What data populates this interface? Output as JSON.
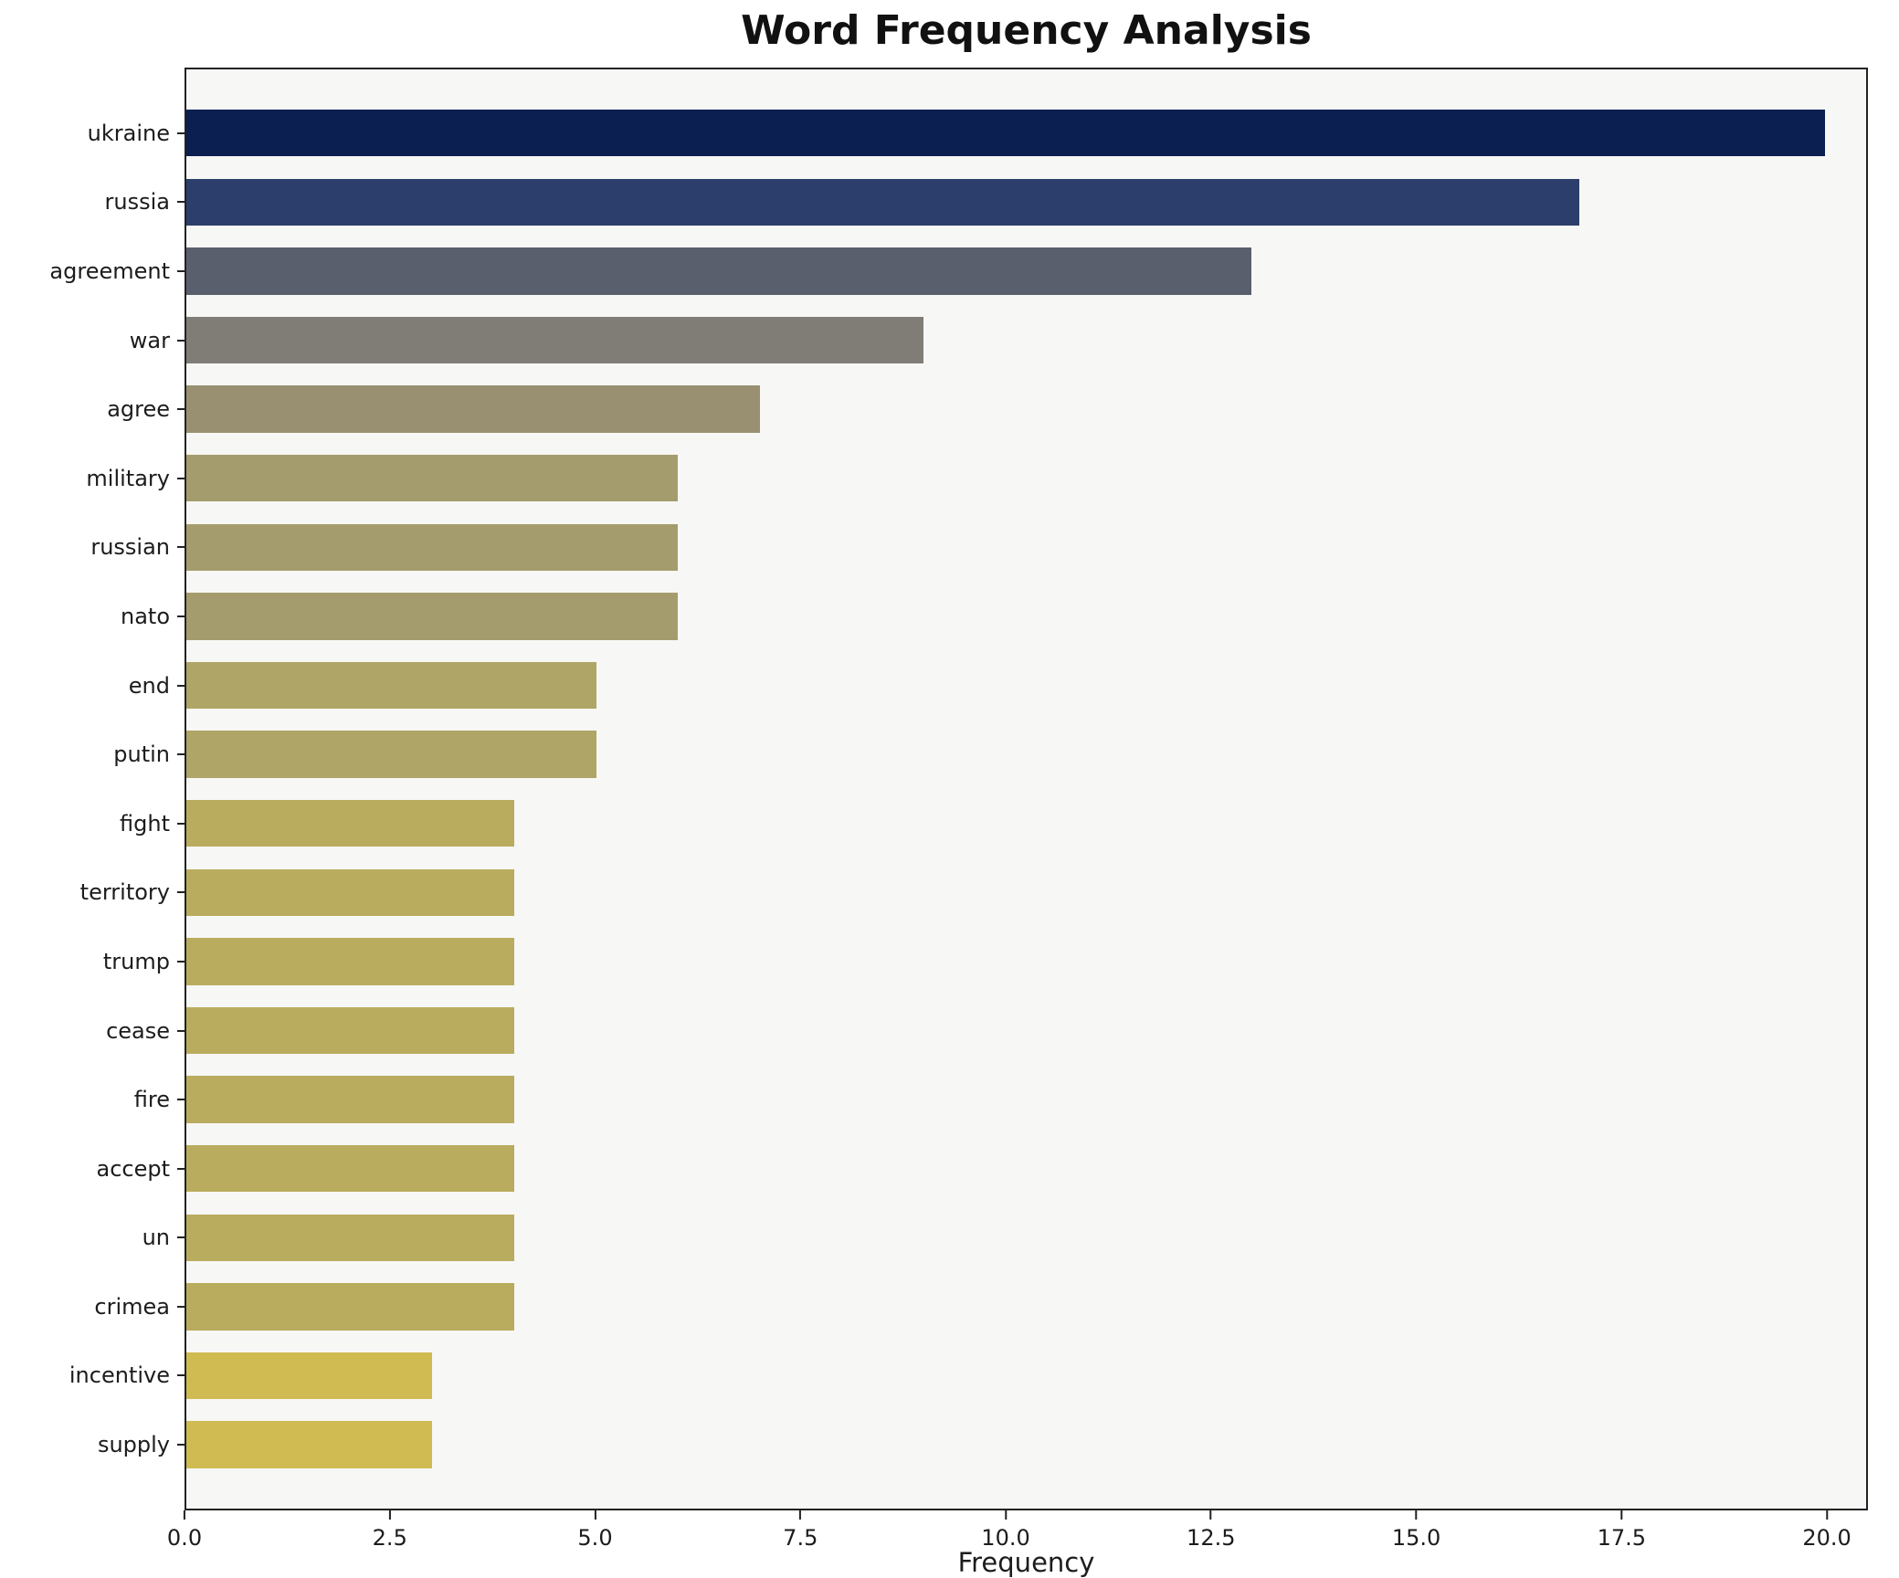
{
  "chart_data": {
    "type": "bar",
    "orientation": "horizontal",
    "title": "Word Frequency Analysis",
    "xlabel": "Frequency",
    "ylabel": "",
    "xlim": [
      0,
      20.5
    ],
    "x_ticks": [
      {
        "value": 0.0,
        "label": "0.0"
      },
      {
        "value": 2.5,
        "label": "2.5"
      },
      {
        "value": 5.0,
        "label": "5.0"
      },
      {
        "value": 7.5,
        "label": "7.5"
      },
      {
        "value": 10.0,
        "label": "10.0"
      },
      {
        "value": 12.5,
        "label": "12.5"
      },
      {
        "value": 15.0,
        "label": "15.0"
      },
      {
        "value": 17.5,
        "label": "17.5"
      },
      {
        "value": 20.0,
        "label": "20.0"
      }
    ],
    "categories": [
      "ukraine",
      "russia",
      "agreement",
      "war",
      "agree",
      "military",
      "russian",
      "nato",
      "end",
      "putin",
      "fight",
      "territory",
      "trump",
      "cease",
      "fire",
      "accept",
      "un",
      "crimea",
      "incentive",
      "supply"
    ],
    "values": [
      20,
      17,
      13,
      9,
      7,
      6,
      6,
      6,
      5,
      5,
      4,
      4,
      4,
      4,
      4,
      4,
      4,
      4,
      3,
      3
    ],
    "bar_colors": [
      "#0b2050",
      "#2c3e6b",
      "#5a5f6e",
      "#7f7d76",
      "#989071",
      "#a59c6d",
      "#a59c6d",
      "#a59c6d",
      "#afa567",
      "#afa567",
      "#b9ac5e",
      "#b9ac5e",
      "#b9ac5e",
      "#b9ac5e",
      "#b9ac5e",
      "#b9ac5e",
      "#b9ac5e",
      "#b9ac5e",
      "#d0bb52",
      "#d0bb52"
    ],
    "plot_background": "#f7f7f5",
    "figure_background": "#ffffff",
    "axis_color": "#222222",
    "grid": false,
    "legend": false
  }
}
